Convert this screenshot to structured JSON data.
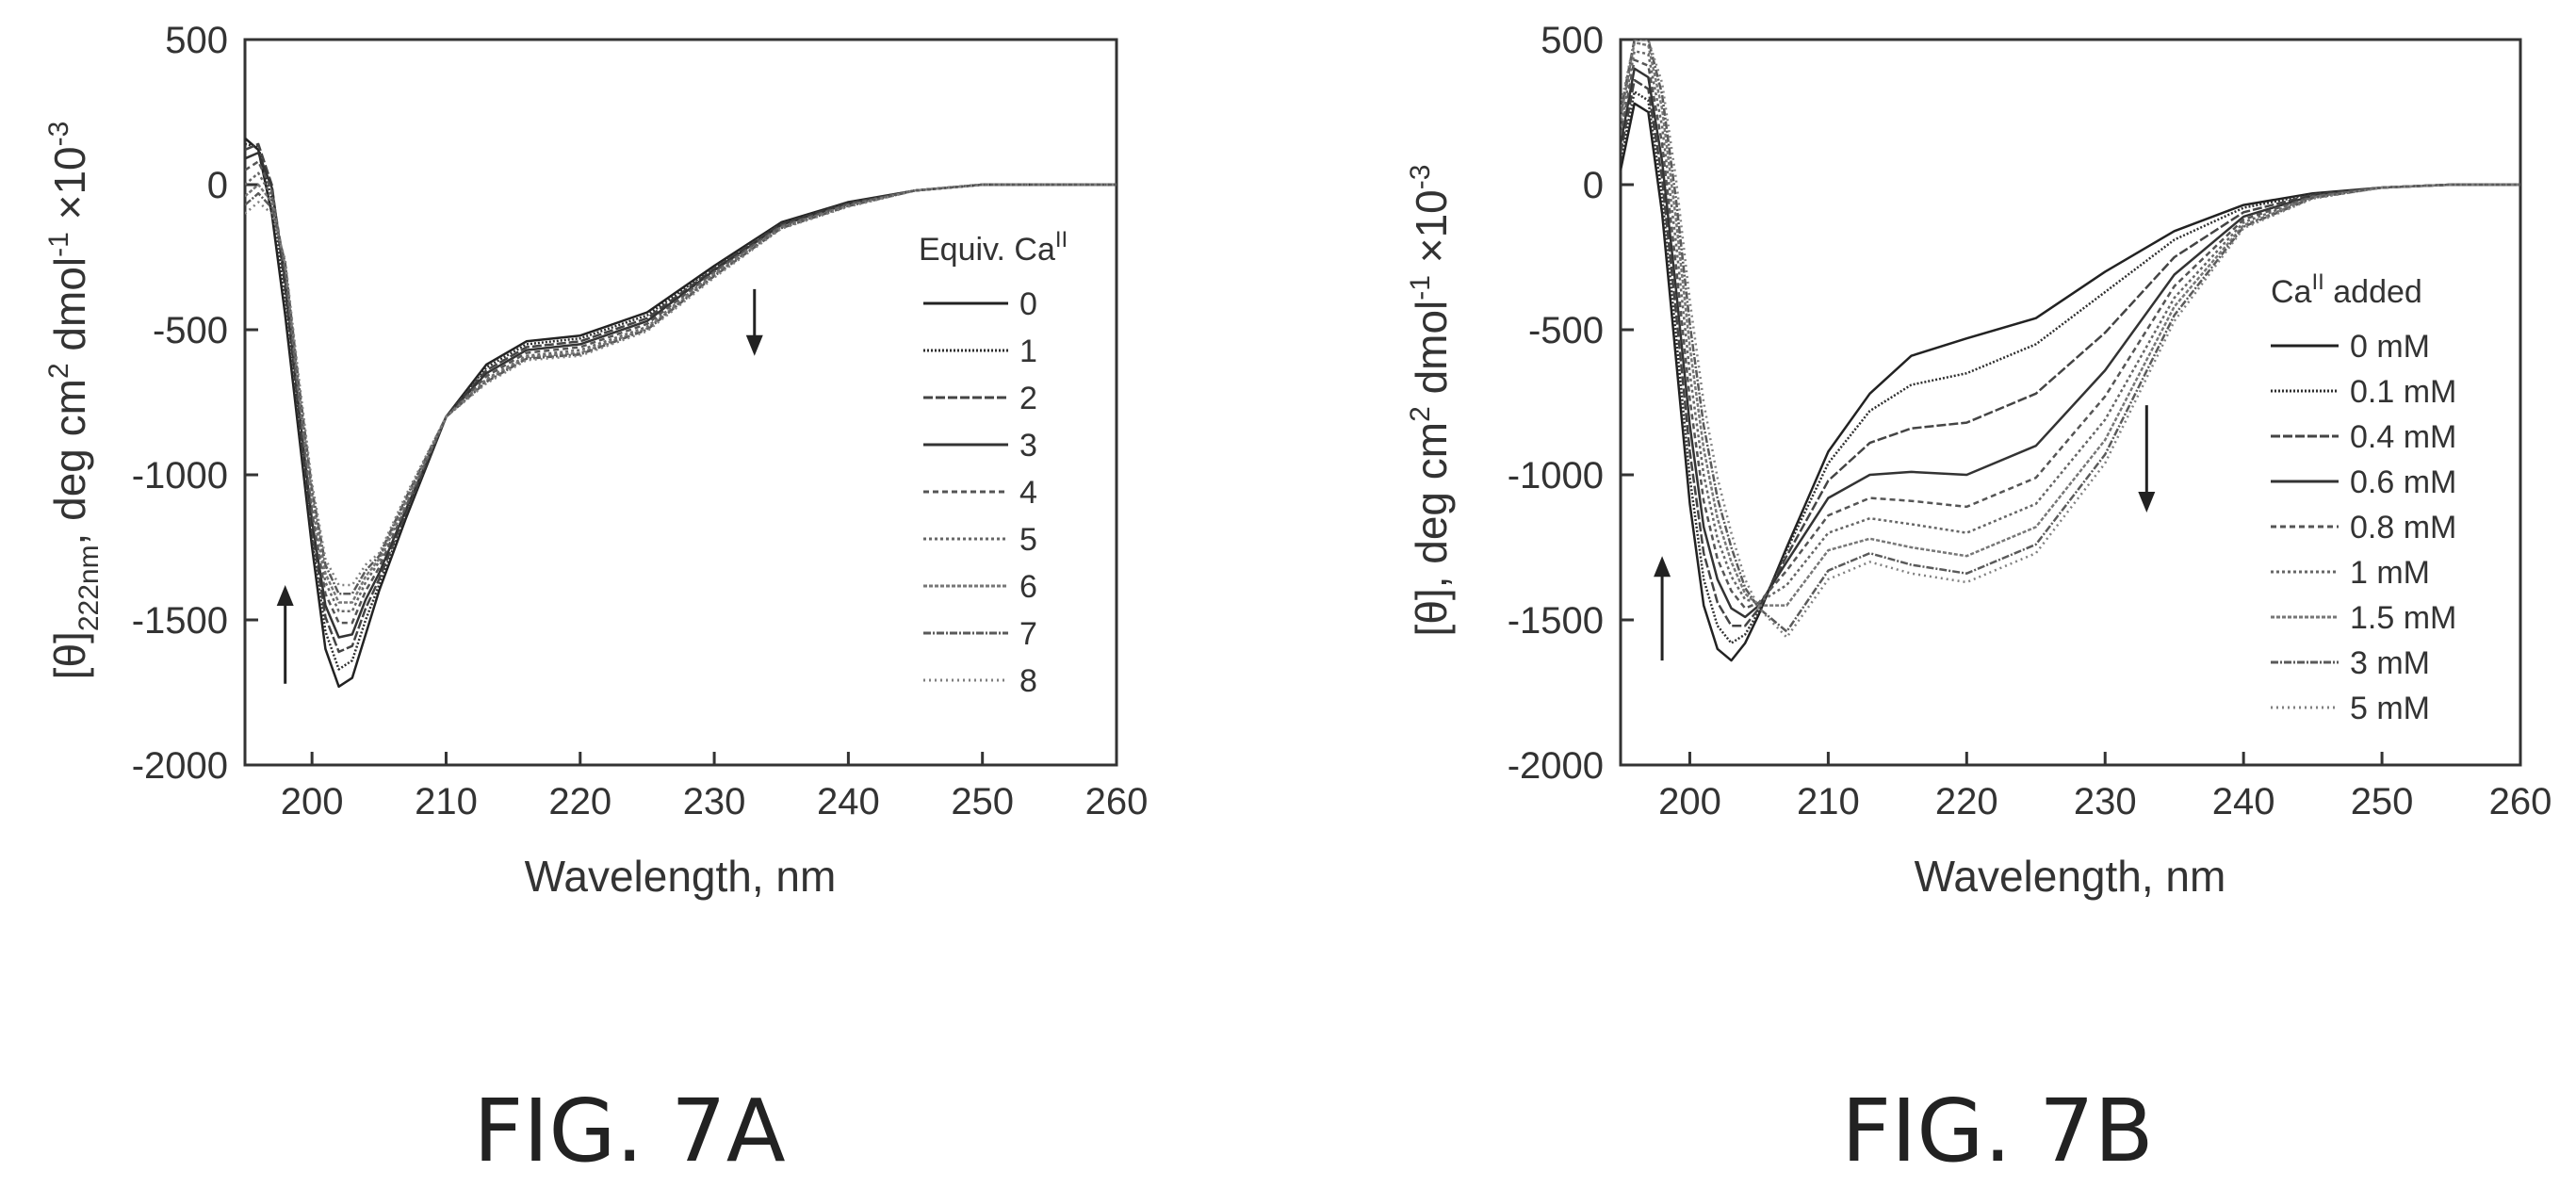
{
  "chart_data": [
    {
      "type": "line",
      "figure_label": "FIG. 7A",
      "xlabel": "Wavelength, nm",
      "ylabel": "[θ]222nm, deg cm2 dmol-1 ×10-3",
      "ylabel_parts": {
        "a": "[θ]",
        "b": "222nm",
        "c": ", deg cm",
        "d": "2",
        "e": " dmol",
        "f": "-1",
        "g": " ×10",
        "h": "-3"
      },
      "xlim": [
        195,
        260
      ],
      "ylim": [
        -2000,
        500
      ],
      "xticks": [
        200,
        210,
        220,
        230,
        240,
        250,
        260
      ],
      "yticks": [
        500,
        0,
        -500,
        -1000,
        -1500,
        -2000
      ],
      "legend": {
        "title": "Equiv. Ca",
        "title_sup": "II",
        "placement": "right"
      },
      "arrows": [
        {
          "x": 198,
          "from": -1720,
          "to": -1380,
          "direction": "up"
        },
        {
          "x": 233,
          "from": -360,
          "to": -590,
          "direction": "down"
        }
      ],
      "grid": false,
      "colors": {
        "line_dark": "#222222",
        "line_light": "#888888",
        "axis": "#333333"
      },
      "series": [
        {
          "name": "0",
          "x": [
            195,
            196,
            197,
            198,
            199,
            200,
            201,
            202,
            203,
            204,
            205,
            207,
            210,
            213,
            216,
            220,
            225,
            230,
            235,
            240,
            245,
            250,
            255,
            260
          ],
          "y": [
            160,
            120,
            -100,
            -450,
            -850,
            -1250,
            -1600,
            -1730,
            -1700,
            -1550,
            -1400,
            -1150,
            -800,
            -620,
            -540,
            -520,
            -440,
            -280,
            -130,
            -60,
            -20,
            0,
            0,
            0
          ]
        },
        {
          "name": "1",
          "x": [
            195,
            196,
            197,
            198,
            199,
            200,
            201,
            202,
            203,
            204,
            205,
            207,
            210,
            213,
            216,
            220,
            225,
            230,
            235,
            240,
            245,
            250,
            255,
            260
          ],
          "y": [
            140,
            130,
            -50,
            -400,
            -820,
            -1220,
            -1540,
            -1670,
            -1640,
            -1500,
            -1380,
            -1140,
            -800,
            -630,
            -550,
            -530,
            -450,
            -285,
            -133,
            -62,
            -20,
            0,
            0,
            0
          ]
        },
        {
          "name": "2",
          "x": [
            195,
            196,
            197,
            198,
            199,
            200,
            201,
            202,
            203,
            204,
            205,
            207,
            210,
            213,
            216,
            220,
            225,
            230,
            235,
            240,
            245,
            250,
            255,
            260
          ],
          "y": [
            120,
            140,
            0,
            -360,
            -780,
            -1190,
            -1490,
            -1610,
            -1590,
            -1460,
            -1360,
            -1130,
            -800,
            -640,
            -560,
            -540,
            -460,
            -290,
            -136,
            -64,
            -20,
            0,
            0,
            0
          ]
        },
        {
          "name": "3",
          "x": [
            195,
            196,
            197,
            198,
            199,
            200,
            201,
            202,
            203,
            204,
            205,
            207,
            210,
            213,
            216,
            220,
            225,
            230,
            235,
            240,
            245,
            250,
            255,
            260
          ],
          "y": [
            90,
            110,
            -10,
            -330,
            -760,
            -1160,
            -1450,
            -1560,
            -1550,
            -1430,
            -1340,
            -1120,
            -800,
            -650,
            -570,
            -550,
            -470,
            -295,
            -139,
            -66,
            -20,
            0,
            0,
            0
          ]
        },
        {
          "name": "4",
          "x": [
            195,
            196,
            197,
            198,
            199,
            200,
            201,
            202,
            203,
            204,
            205,
            207,
            210,
            213,
            216,
            220,
            225,
            230,
            235,
            240,
            245,
            250,
            255,
            260
          ],
          "y": [
            50,
            80,
            -20,
            -300,
            -740,
            -1130,
            -1410,
            -1510,
            -1510,
            -1400,
            -1320,
            -1110,
            -800,
            -660,
            -580,
            -560,
            -480,
            -300,
            -142,
            -68,
            -20,
            0,
            0,
            0
          ]
        },
        {
          "name": "5",
          "x": [
            195,
            196,
            197,
            198,
            199,
            200,
            201,
            202,
            203,
            204,
            205,
            207,
            210,
            213,
            216,
            220,
            225,
            230,
            235,
            240,
            245,
            250,
            255,
            260
          ],
          "y": [
            0,
            40,
            -40,
            -290,
            -720,
            -1100,
            -1370,
            -1470,
            -1470,
            -1370,
            -1300,
            -1100,
            -800,
            -670,
            -590,
            -570,
            -490,
            -305,
            -145,
            -70,
            -20,
            0,
            0,
            0
          ]
        },
        {
          "name": "6",
          "x": [
            195,
            196,
            197,
            198,
            199,
            200,
            201,
            202,
            203,
            204,
            205,
            207,
            210,
            213,
            216,
            220,
            225,
            230,
            235,
            240,
            245,
            250,
            255,
            260
          ],
          "y": [
            -40,
            0,
            -60,
            -280,
            -700,
            -1070,
            -1340,
            -1440,
            -1440,
            -1350,
            -1290,
            -1090,
            -800,
            -675,
            -595,
            -580,
            -495,
            -310,
            -148,
            -72,
            -20,
            0,
            0,
            0
          ]
        },
        {
          "name": "7",
          "x": [
            195,
            196,
            197,
            198,
            199,
            200,
            201,
            202,
            203,
            204,
            205,
            207,
            210,
            213,
            216,
            220,
            225,
            230,
            235,
            240,
            245,
            250,
            255,
            260
          ],
          "y": [
            -70,
            -30,
            -80,
            -270,
            -680,
            -1050,
            -1310,
            -1410,
            -1410,
            -1330,
            -1280,
            -1080,
            -800,
            -680,
            -600,
            -585,
            -500,
            -315,
            -150,
            -74,
            -20,
            0,
            0,
            0
          ]
        },
        {
          "name": "8",
          "x": [
            195,
            196,
            197,
            198,
            199,
            200,
            201,
            202,
            203,
            204,
            205,
            207,
            210,
            213,
            216,
            220,
            225,
            230,
            235,
            240,
            245,
            250,
            255,
            260
          ],
          "y": [
            -100,
            -60,
            -100,
            -260,
            -660,
            -1030,
            -1290,
            -1380,
            -1380,
            -1310,
            -1270,
            -1070,
            -800,
            -685,
            -605,
            -590,
            -505,
            -320,
            -152,
            -76,
            -20,
            0,
            0,
            0
          ]
        }
      ]
    },
    {
      "type": "line",
      "figure_label": "FIG. 7B",
      "xlabel": "Wavelength, nm",
      "ylabel": "[θ], deg cm2 dmol-1 ×10-3",
      "ylabel_parts": {
        "a": "[θ], deg cm",
        "b": "2",
        "c": " dmol",
        "d": "-1",
        "e": " ×10",
        "f": "-3"
      },
      "xlim": [
        195,
        260
      ],
      "ylim": [
        -2000,
        500
      ],
      "xticks": [
        200,
        210,
        220,
        230,
        240,
        250,
        260
      ],
      "yticks": [
        500,
        0,
        -500,
        -1000,
        -1500,
        -2000
      ],
      "legend": {
        "title": "Ca",
        "title_sup": "II",
        "title_suffix": " added",
        "placement": "right"
      },
      "arrows": [
        {
          "x": 198,
          "from": -1640,
          "to": -1280,
          "direction": "up"
        },
        {
          "x": 233,
          "from": -760,
          "to": -1130,
          "direction": "down"
        }
      ],
      "grid": false,
      "colors": {
        "line_dark": "#222222",
        "line_light": "#888888",
        "axis": "#333333"
      },
      "series": [
        {
          "name": "0 mM",
          "x": [
            195,
            196,
            197,
            198,
            199,
            200,
            201,
            202,
            203,
            204,
            205,
            207,
            210,
            213,
            216,
            220,
            225,
            230,
            235,
            240,
            245,
            250,
            255,
            260
          ],
          "y": [
            50,
            280,
            250,
            -100,
            -600,
            -1100,
            -1450,
            -1600,
            -1640,
            -1580,
            -1480,
            -1250,
            -920,
            -720,
            -590,
            -530,
            -460,
            -300,
            -160,
            -70,
            -30,
            -10,
            0,
            0
          ]
        },
        {
          "name": "0.1 mM",
          "x": [
            195,
            196,
            197,
            198,
            199,
            200,
            201,
            202,
            203,
            204,
            205,
            207,
            210,
            213,
            216,
            220,
            225,
            230,
            235,
            240,
            245,
            250,
            255,
            260
          ],
          "y": [
            80,
            320,
            290,
            -40,
            -520,
            -1010,
            -1360,
            -1520,
            -1580,
            -1550,
            -1470,
            -1260,
            -960,
            -780,
            -690,
            -650,
            -550,
            -370,
            -190,
            -80,
            -32,
            -10,
            0,
            0
          ]
        },
        {
          "name": "0.4 mM",
          "x": [
            195,
            196,
            197,
            198,
            199,
            200,
            201,
            202,
            203,
            204,
            205,
            207,
            210,
            213,
            216,
            220,
            225,
            230,
            235,
            240,
            245,
            250,
            255,
            260
          ],
          "y": [
            110,
            360,
            330,
            20,
            -440,
            -920,
            -1270,
            -1440,
            -1520,
            -1520,
            -1460,
            -1280,
            -1020,
            -890,
            -840,
            -820,
            -720,
            -510,
            -250,
            -95,
            -35,
            -10,
            0,
            0
          ]
        },
        {
          "name": "0.6 mM",
          "x": [
            195,
            196,
            197,
            198,
            199,
            200,
            201,
            202,
            203,
            204,
            205,
            207,
            210,
            213,
            216,
            220,
            225,
            230,
            235,
            240,
            245,
            250,
            255,
            260
          ],
          "y": [
            140,
            400,
            370,
            80,
            -360,
            -830,
            -1180,
            -1360,
            -1460,
            -1490,
            -1450,
            -1300,
            -1080,
            -1000,
            -990,
            -1000,
            -900,
            -640,
            -310,
            -110,
            -38,
            -10,
            0,
            0
          ]
        },
        {
          "name": "0.8 mM",
          "x": [
            195,
            196,
            197,
            198,
            199,
            200,
            201,
            202,
            203,
            204,
            205,
            207,
            210,
            213,
            216,
            220,
            225,
            230,
            235,
            240,
            245,
            250,
            255,
            260
          ],
          "y": [
            170,
            430,
            410,
            140,
            -280,
            -740,
            -1090,
            -1290,
            -1400,
            -1460,
            -1440,
            -1330,
            -1140,
            -1080,
            -1090,
            -1110,
            -1010,
            -730,
            -350,
            -120,
            -40,
            -10,
            0,
            0
          ]
        },
        {
          "name": "1 mM",
          "x": [
            195,
            196,
            197,
            198,
            199,
            200,
            201,
            202,
            203,
            204,
            205,
            207,
            210,
            213,
            216,
            220,
            225,
            230,
            235,
            240,
            245,
            250,
            255,
            260
          ],
          "y": [
            200,
            460,
            450,
            200,
            -200,
            -650,
            -1000,
            -1220,
            -1350,
            -1430,
            -1440,
            -1380,
            -1200,
            -1150,
            -1170,
            -1200,
            -1100,
            -810,
            -390,
            -130,
            -42,
            -10,
            0,
            0
          ]
        },
        {
          "name": "1.5 mM",
          "x": [
            195,
            196,
            197,
            198,
            199,
            200,
            201,
            202,
            203,
            204,
            205,
            207,
            210,
            213,
            216,
            220,
            225,
            230,
            235,
            240,
            245,
            250,
            255,
            260
          ],
          "y": [
            230,
            490,
            480,
            260,
            -120,
            -560,
            -910,
            -1150,
            -1300,
            -1410,
            -1450,
            -1450,
            -1260,
            -1220,
            -1250,
            -1280,
            -1180,
            -880,
            -420,
            -140,
            -44,
            -10,
            0,
            0
          ]
        },
        {
          "name": "3 mM",
          "x": [
            195,
            196,
            197,
            198,
            199,
            200,
            201,
            202,
            203,
            204,
            205,
            207,
            210,
            213,
            216,
            220,
            225,
            230,
            235,
            240,
            245,
            250,
            255,
            260
          ],
          "y": [
            250,
            500,
            500,
            310,
            -50,
            -480,
            -830,
            -1080,
            -1250,
            -1390,
            -1460,
            -1540,
            -1330,
            -1270,
            -1310,
            -1340,
            -1240,
            -930,
            -450,
            -145,
            -46,
            -10,
            0,
            0
          ]
        },
        {
          "name": "5 mM",
          "x": [
            195,
            196,
            197,
            198,
            199,
            200,
            201,
            202,
            203,
            204,
            205,
            207,
            210,
            213,
            216,
            220,
            225,
            230,
            235,
            240,
            245,
            250,
            255,
            260
          ],
          "y": [
            270,
            500,
            500,
            350,
            20,
            -400,
            -750,
            -1010,
            -1200,
            -1360,
            -1460,
            -1560,
            -1360,
            -1300,
            -1340,
            -1370,
            -1270,
            -960,
            -470,
            -150,
            -48,
            -10,
            0,
            0
          ]
        }
      ]
    }
  ]
}
